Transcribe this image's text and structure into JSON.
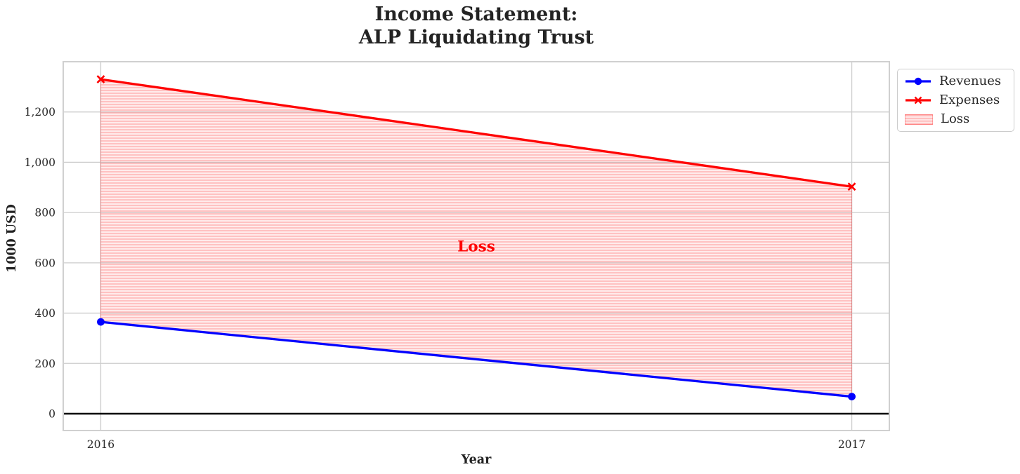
{
  "chart_data": {
    "type": "line",
    "title": "Income Statement:\nALP Liquidating Trust",
    "title_lines": [
      "Income Statement:",
      "ALP Liquidating Trust"
    ],
    "xlabel": "Year",
    "ylabel": "1000 USD",
    "x": [
      2016,
      2017
    ],
    "xtick_labels": [
      "2016",
      "2017"
    ],
    "yticks": [
      0,
      200,
      400,
      600,
      800,
      1000,
      1200
    ],
    "ytick_labels": [
      "0",
      "200",
      "400",
      "600",
      "800",
      "1,000",
      "1,200"
    ],
    "xlim": [
      2015.95,
      2017.05
    ],
    "ylim": [
      -67,
      1400
    ],
    "grid": true,
    "series": [
      {
        "name": "Revenues",
        "values": [
          365,
          68
        ],
        "color": "#0000ff",
        "marker": "circle"
      },
      {
        "name": "Expenses",
        "values": [
          1330,
          903
        ],
        "color": "#ff0000",
        "marker": "x"
      }
    ],
    "loss_area": {
      "label": "Loss",
      "upper_series": "Expenses",
      "lower_series": "Revenues",
      "fill_color": "#ff0000",
      "hatch": "horizontal-lines"
    },
    "annotation": {
      "text": "Loss",
      "x": 2016.5,
      "y": 665,
      "color": "#ff0000"
    },
    "zero_line": {
      "y": 0,
      "color": "#000000"
    },
    "legend_position": "outside upper right",
    "axis_colors": {
      "grid": "#cccccc",
      "spine": "#d0d0d0",
      "tick_text": "#262626"
    }
  }
}
